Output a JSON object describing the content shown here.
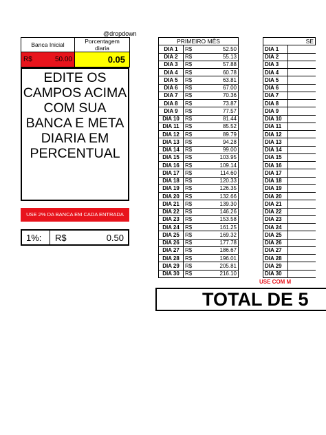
{
  "handle": "@dropdown",
  "header": {
    "bank_label": "Banca Inicial",
    "pct_label": "Porcentagem diaria",
    "bank_currency": "R$",
    "bank_value": "50.00",
    "pct_value": "0.05",
    "bank_color": "#e8141c",
    "pct_color": "#ffff00"
  },
  "instructions": {
    "line1": "EDITE OS",
    "line2": "CAMPOS ACIMA",
    "line3": "COM SUA",
    "line4": "BANCA E META",
    "line5": "DIARIA EM",
    "line6": "PERCENTUAL"
  },
  "red_note": "USE 2% DA BANCA EM CADA ENTRADA",
  "one_percent": {
    "label": "1%:",
    "currency": "R$",
    "value": "0.50"
  },
  "first_month": {
    "title": "PRIMEIRO MÊS",
    "currency": "R$",
    "rows": [
      {
        "day": "DIA 1",
        "value": "52.50"
      },
      {
        "day": "DIA 2",
        "value": "55.13"
      },
      {
        "day": "DIA 3",
        "value": "57.88"
      },
      {
        "day": "DIA 4",
        "value": "60.78"
      },
      {
        "day": "DIA 5",
        "value": "63.81"
      },
      {
        "day": "DIA 6",
        "value": "67.00"
      },
      {
        "day": "DIA 7",
        "value": "70.36"
      },
      {
        "day": "DIA 8",
        "value": "73.87"
      },
      {
        "day": "DIA 9",
        "value": "77.57"
      },
      {
        "day": "DIA 10",
        "value": "81.44"
      },
      {
        "day": "DIA 11",
        "value": "85.52"
      },
      {
        "day": "DIA 12",
        "value": "89.79"
      },
      {
        "day": "DIA 13",
        "value": "94.28"
      },
      {
        "day": "DIA 14",
        "value": "99.00"
      },
      {
        "day": "DIA 15",
        "value": "103.95"
      },
      {
        "day": "DIA 16",
        "value": "109.14"
      },
      {
        "day": "DIA 17",
        "value": "114.60"
      },
      {
        "day": "DIA 18",
        "value": "120.33"
      },
      {
        "day": "DIA 19",
        "value": "126.35"
      },
      {
        "day": "DIA 20",
        "value": "132.66"
      },
      {
        "day": "DIA 21",
        "value": "139.30"
      },
      {
        "day": "DIA 22",
        "value": "146.26"
      },
      {
        "day": "DIA 23",
        "value": "153.58"
      },
      {
        "day": "DIA 24",
        "value": "161.25"
      },
      {
        "day": "DIA 25",
        "value": "169.32"
      },
      {
        "day": "DIA 26",
        "value": "177.78"
      },
      {
        "day": "DIA 27",
        "value": "186.67"
      },
      {
        "day": "DIA 28",
        "value": "196.01"
      },
      {
        "day": "DIA 29",
        "value": "205.81"
      },
      {
        "day": "DIA 30",
        "value": "216.10"
      }
    ]
  },
  "second_month": {
    "title": "SE",
    "days": [
      "DIA 1",
      "DIA 2",
      "DIA 3",
      "DIA 4",
      "DIA 5",
      "DIA 6",
      "DIA 7",
      "DIA 8",
      "DIA 9",
      "DIA 10",
      "DIA 11",
      "DIA 12",
      "DIA 13",
      "DIA 14",
      "DIA 15",
      "DIA 16",
      "DIA 17",
      "DIA 18",
      "DIA 19",
      "DIA 20",
      "DIA 21",
      "DIA 22",
      "DIA 23",
      "DIA 24",
      "DIA 25",
      "DIA 26",
      "DIA 27",
      "DIA 28",
      "DIA 29",
      "DIA 30"
    ],
    "note": "USE COM M"
  },
  "total_label": "TOTAL DE 5"
}
